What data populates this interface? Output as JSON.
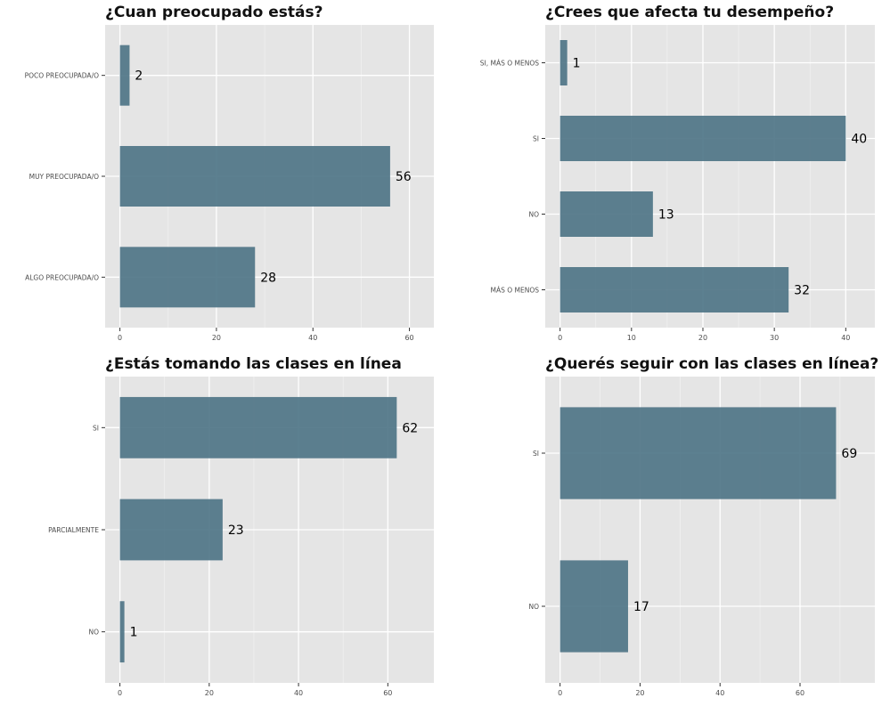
{
  "chart_data": [
    {
      "type": "bar",
      "orientation": "horizontal",
      "title": "¿Cuan preocupado estás?",
      "categories": [
        "POCO PREOCUPADA/O",
        "MUY PREOCUPADA/O",
        "ALGO PREOCUPADA/O"
      ],
      "values": [
        2,
        56,
        28
      ],
      "xlim": [
        0,
        62
      ],
      "xticks": [
        0,
        20,
        40,
        60
      ],
      "grid": true,
      "bar_color": "#4f7587"
    },
    {
      "type": "bar",
      "orientation": "horizontal",
      "title": "¿Crees que afecta tu desempeño?",
      "categories": [
        "SI, MÁS O MENOS",
        "SI",
        "NO",
        "MÁS O MENOS"
      ],
      "values": [
        1,
        40,
        13,
        32
      ],
      "xlim": [
        0,
        42
      ],
      "xticks": [
        0,
        10,
        20,
        30,
        40
      ],
      "grid": true,
      "bar_color": "#4f7587"
    },
    {
      "type": "bar",
      "orientation": "horizontal",
      "title": "¿Estás tomando las clases en línea",
      "categories": [
        "SI",
        "PARCIALMENTE",
        "NO"
      ],
      "values": [
        62,
        23,
        1
      ],
      "xlim": [
        0,
        67
      ],
      "xticks": [
        0,
        20,
        40,
        60
      ],
      "grid": true,
      "bar_color": "#4f7587"
    },
    {
      "type": "bar",
      "orientation": "horizontal",
      "title": "¿Querés seguir con las clases en línea?",
      "categories": [
        "SI",
        "NO"
      ],
      "values": [
        69,
        17
      ],
      "xlim": [
        0,
        75
      ],
      "xticks": [
        0,
        20,
        40,
        60
      ],
      "grid": true,
      "bar_color": "#4f7587"
    }
  ]
}
